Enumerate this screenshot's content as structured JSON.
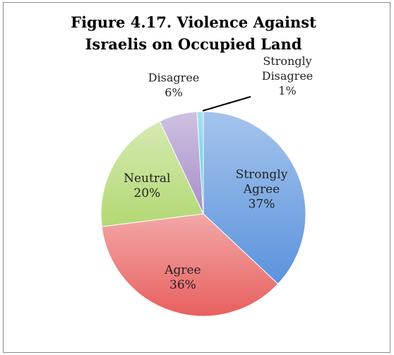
{
  "chart_data": {
    "type": "pie",
    "title_lines": [
      "Figure 4.17. Violence Against",
      "Israelis on Occupied Land"
    ],
    "categories": [
      "Strongly Agree",
      "Agree",
      "Neutral",
      "Disagree",
      "Strongly Disagree"
    ],
    "values": [
      37,
      36,
      20,
      6,
      1
    ],
    "value_labels": [
      "37%",
      "36%",
      "20%",
      "6%",
      "1%"
    ],
    "label_lines": [
      [
        "Strongly",
        "Agree",
        "37%"
      ],
      [
        "Agree",
        "36%"
      ],
      [
        "Neutral",
        "20%"
      ],
      [
        "Disagree",
        "6%"
      ],
      [
        "Strongly",
        "Disagree",
        "1%"
      ]
    ],
    "colors": [
      "#5b93dd",
      "#e8605f",
      "#b3d873",
      "#a68fc9",
      "#5ec6e8"
    ],
    "start_angle_deg": 0,
    "direction": "clockwise",
    "legend": "none"
  }
}
